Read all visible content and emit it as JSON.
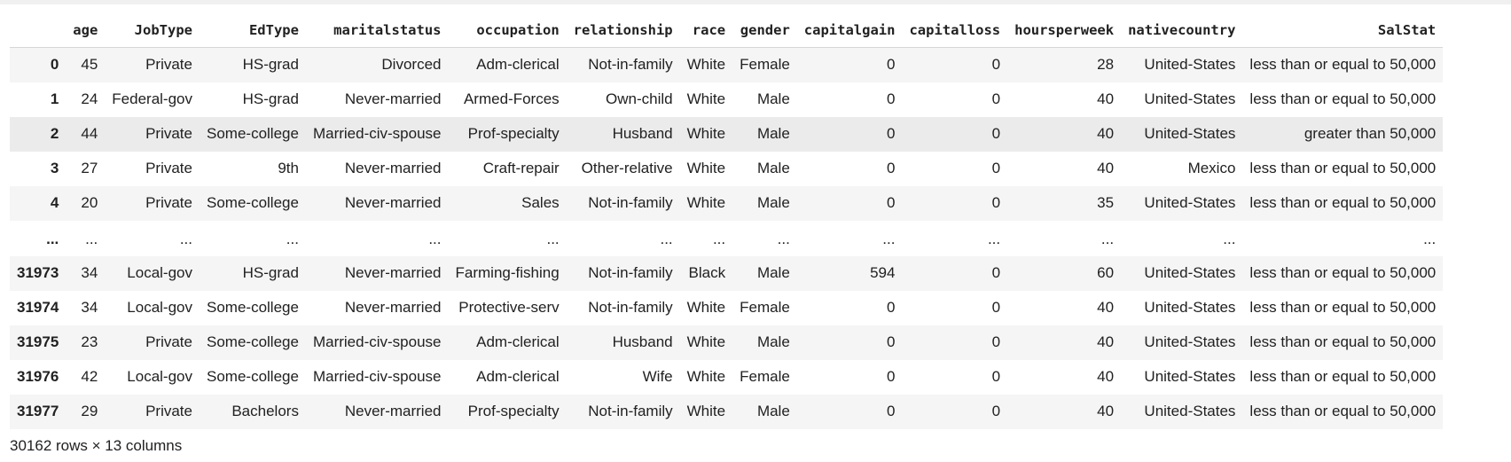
{
  "columns": [
    "",
    "age",
    "JobType",
    "EdType",
    "maritalstatus",
    "occupation",
    "relationship",
    "race",
    "gender",
    "capitalgain",
    "capitalloss",
    "hoursperweek",
    "nativecountry",
    "SalStat"
  ],
  "rows_top": [
    {
      "index": "0",
      "cells": [
        "45",
        "Private",
        "HS-grad",
        "Divorced",
        "Adm-clerical",
        "Not-in-family",
        "White",
        "Female",
        "0",
        "0",
        "28",
        "United-States",
        "less than or equal to 50,000"
      ]
    },
    {
      "index": "1",
      "cells": [
        "24",
        "Federal-gov",
        "HS-grad",
        "Never-married",
        "Armed-Forces",
        "Own-child",
        "White",
        "Male",
        "0",
        "0",
        "40",
        "United-States",
        "less than or equal to 50,000"
      ]
    },
    {
      "index": "2",
      "cells": [
        "44",
        "Private",
        "Some-college",
        "Married-civ-spouse",
        "Prof-specialty",
        "Husband",
        "White",
        "Male",
        "0",
        "0",
        "40",
        "United-States",
        "greater than 50,000"
      ]
    },
    {
      "index": "3",
      "cells": [
        "27",
        "Private",
        "9th",
        "Never-married",
        "Craft-repair",
        "Other-relative",
        "White",
        "Male",
        "0",
        "0",
        "40",
        "Mexico",
        "less than or equal to 50,000"
      ]
    },
    {
      "index": "4",
      "cells": [
        "20",
        "Private",
        "Some-college",
        "Never-married",
        "Sales",
        "Not-in-family",
        "White",
        "Male",
        "0",
        "0",
        "35",
        "United-States",
        "less than or equal to 50,000"
      ]
    }
  ],
  "ellipsis": "...",
  "rows_bottom": [
    {
      "index": "31973",
      "cells": [
        "34",
        "Local-gov",
        "HS-grad",
        "Never-married",
        "Farming-fishing",
        "Not-in-family",
        "Black",
        "Male",
        "594",
        "0",
        "60",
        "United-States",
        "less than or equal to 50,000"
      ]
    },
    {
      "index": "31974",
      "cells": [
        "34",
        "Local-gov",
        "Some-college",
        "Never-married",
        "Protective-serv",
        "Not-in-family",
        "White",
        "Female",
        "0",
        "0",
        "40",
        "United-States",
        "less than or equal to 50,000"
      ]
    },
    {
      "index": "31975",
      "cells": [
        "23",
        "Private",
        "Some-college",
        "Married-civ-spouse",
        "Adm-clerical",
        "Husband",
        "White",
        "Male",
        "0",
        "0",
        "40",
        "United-States",
        "less than or equal to 50,000"
      ]
    },
    {
      "index": "31976",
      "cells": [
        "42",
        "Local-gov",
        "Some-college",
        "Married-civ-spouse",
        "Adm-clerical",
        "Wife",
        "White",
        "Female",
        "0",
        "0",
        "40",
        "United-States",
        "less than or equal to 50,000"
      ]
    },
    {
      "index": "31977",
      "cells": [
        "29",
        "Private",
        "Bachelors",
        "Never-married",
        "Prof-specialty",
        "Not-in-family",
        "White",
        "Male",
        "0",
        "0",
        "40",
        "United-States",
        "less than or equal to 50,000"
      ]
    }
  ],
  "footer": "30162 rows × 13 columns",
  "colors": {
    "odd_row": "#f5f5f5",
    "hover_row": "#ebebeb",
    "text": "#212121"
  }
}
